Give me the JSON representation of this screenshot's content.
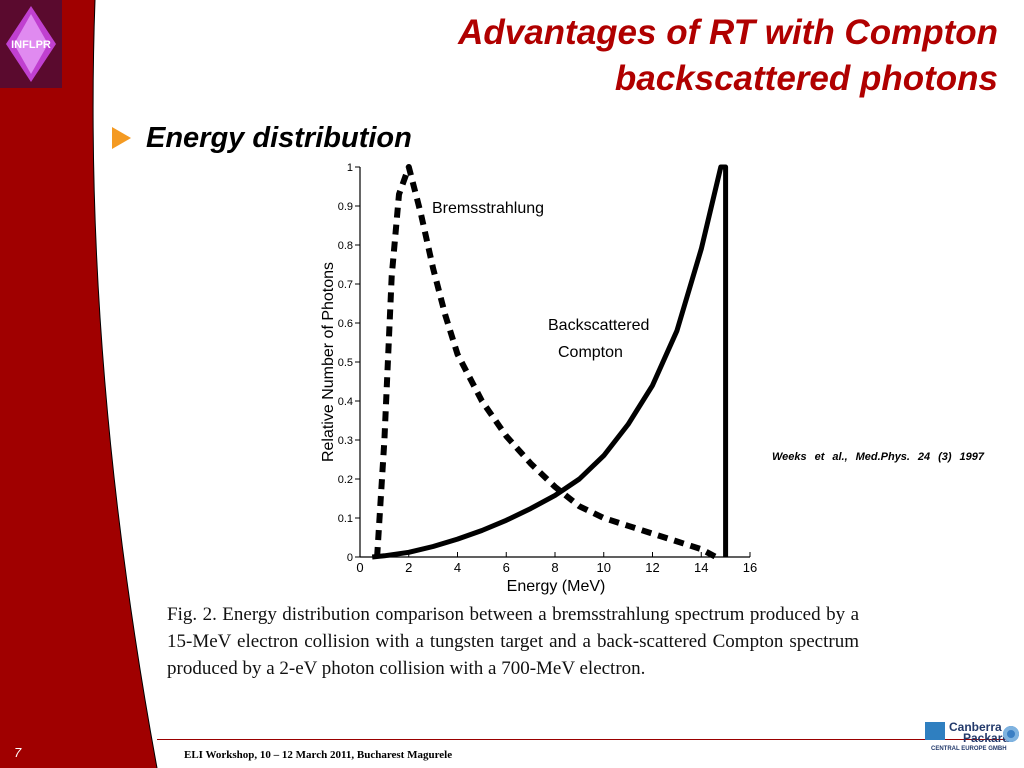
{
  "slide": {
    "title_line1": "Advantages of RT with Compton",
    "title_line2": "backscattered photons",
    "bullet": "Energy distribution",
    "logo_text": "INFLPR",
    "citation": "Weeks et al., Med.Phys. 24 (3) 1997",
    "caption": "Fig. 2. Energy distribution comparison between a bremsstrahlung spectrum produced by a 15-MeV electron collision with a tungsten target and a back-scattered Compton spectrum produced by a 2-eV photon collision with a 700-MeV electron.",
    "page_number": "7",
    "footer": "ELI Workshop, 10 – 12 March 2011, Bucharest Magurele",
    "partner_line1": "Canberra",
    "partner_line2": "Packard",
    "partner_sub": "CENTRAL EUROPE GMBH",
    "colors": {
      "sidebar": "#a00000",
      "title": "#b00000",
      "bullet_arrow": "#f49a22",
      "logo_bg": "#5a0a2e",
      "logo_diamond": "#c040d0"
    }
  },
  "chart_data": {
    "type": "line",
    "xlabel": "Energy (MeV)",
    "ylabel": "Relative Number of Photons",
    "xlim": [
      0,
      16
    ],
    "ylim": [
      0,
      1
    ],
    "x_ticks": [
      0,
      2,
      4,
      6,
      8,
      10,
      12,
      14,
      16
    ],
    "y_ticks": [
      0,
      0.1,
      0.2,
      0.3,
      0.4,
      0.5,
      0.6,
      0.7,
      0.8,
      0.9,
      1
    ],
    "series": [
      {
        "name": "Bremsstrahlung",
        "style": "dashed",
        "x": [
          0.7,
          1.0,
          1.3,
          1.6,
          2.0,
          2.5,
          3.0,
          3.5,
          4.0,
          5.0,
          6.0,
          7.0,
          8.0,
          9.0,
          10.0,
          11.0,
          12.0,
          13.0,
          14.0,
          14.6
        ],
        "y": [
          0.0,
          0.3,
          0.72,
          0.93,
          1.0,
          0.88,
          0.74,
          0.62,
          0.52,
          0.4,
          0.31,
          0.24,
          0.18,
          0.13,
          0.1,
          0.08,
          0.06,
          0.04,
          0.02,
          0.0
        ]
      },
      {
        "name": "Backscattered Compton",
        "style": "solid",
        "x": [
          0.5,
          1.0,
          2.0,
          3.0,
          4.0,
          5.0,
          6.0,
          7.0,
          8.0,
          9.0,
          10.0,
          11.0,
          12.0,
          13.0,
          14.0,
          14.8,
          15.0,
          15.0
        ],
        "y": [
          0.0,
          0.003,
          0.012,
          0.027,
          0.046,
          0.068,
          0.094,
          0.124,
          0.158,
          0.2,
          0.26,
          0.34,
          0.44,
          0.58,
          0.79,
          1.0,
          1.0,
          0.0
        ]
      }
    ]
  }
}
